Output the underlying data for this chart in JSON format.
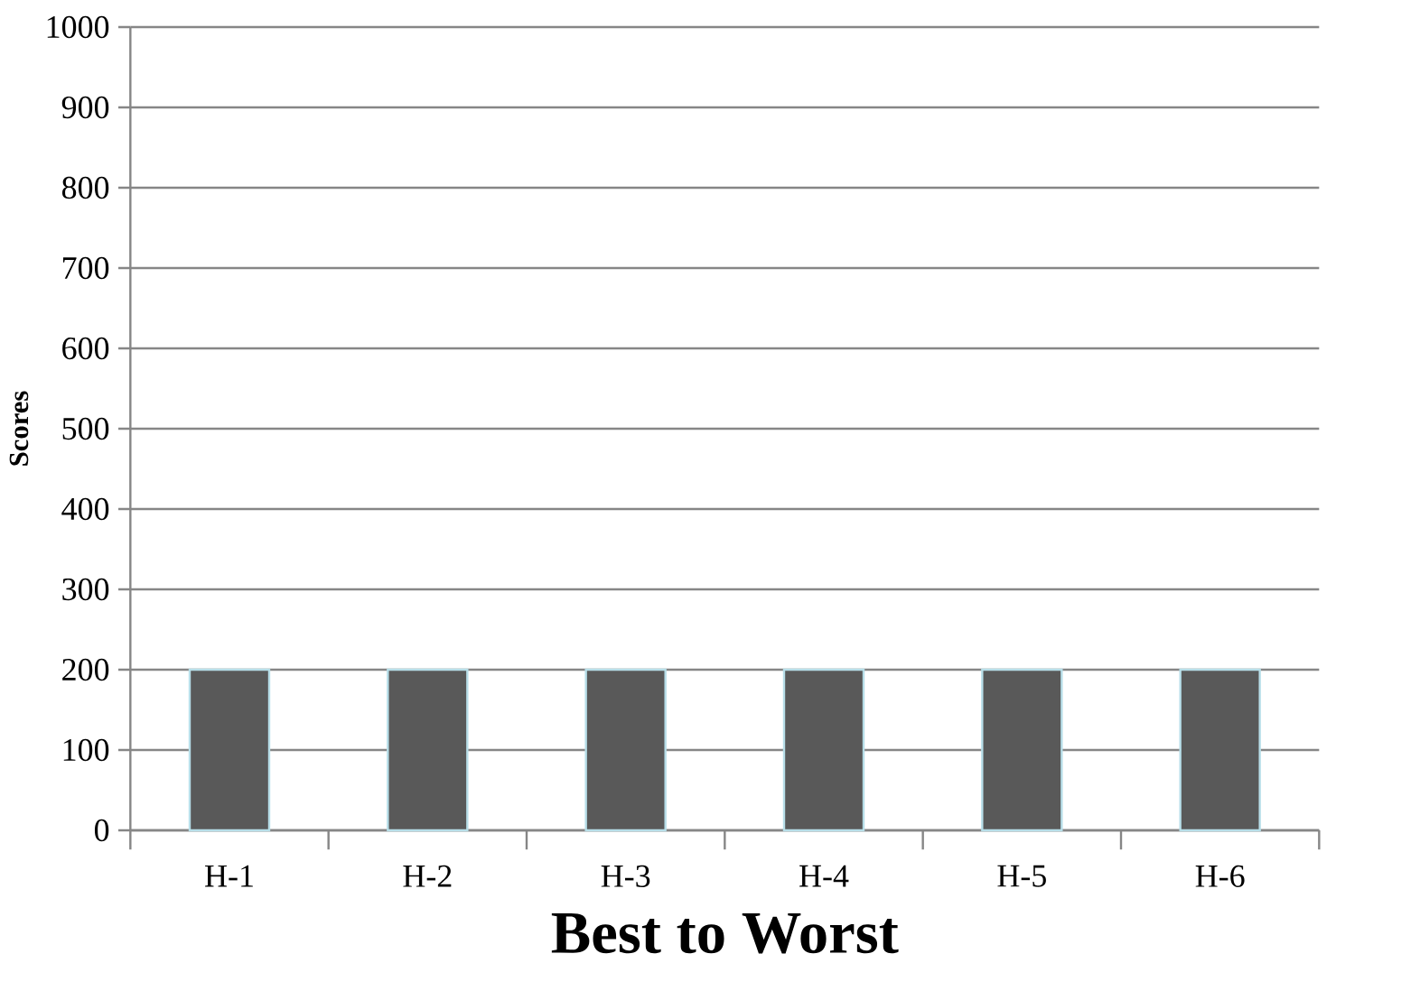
{
  "chart_data": {
    "type": "bar",
    "xlabel": "Best to Worst",
    "ylabel": "Scores",
    "categories": [
      "H-1",
      "H-2",
      "H-3",
      "H-4",
      "H-5",
      "H-6"
    ],
    "values": [
      200,
      200,
      200,
      200,
      200,
      200
    ],
    "color": "#595959",
    "ylim": [
      0,
      1000
    ],
    "yticks": [
      0,
      100,
      200,
      300,
      400,
      500,
      600,
      700,
      800,
      900,
      1000
    ],
    "grid": "y"
  }
}
